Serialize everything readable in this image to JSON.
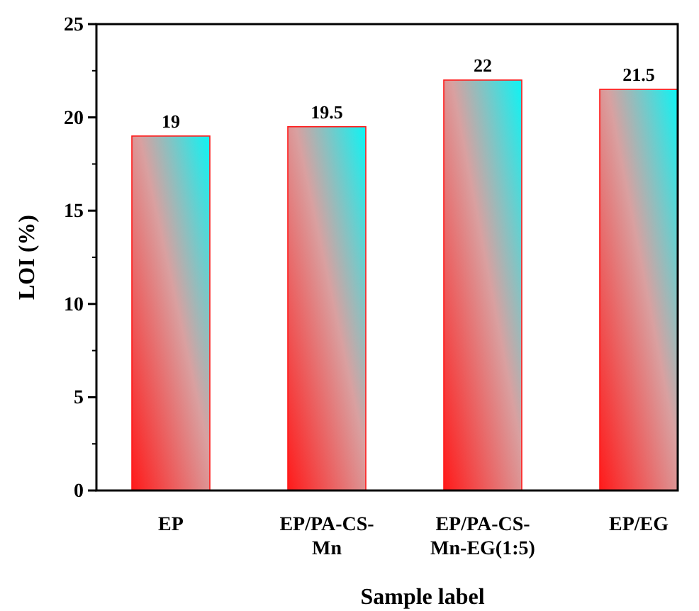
{
  "chart_data": {
    "type": "bar",
    "xlabel": "Sample label",
    "ylabel": "LOI (%)",
    "categories": [
      "EP",
      "EP/PA-CS-Mn",
      "EP/PA-CS-Mn-EG(1:5)",
      "EP/EG"
    ],
    "values": [
      19,
      19.5,
      22,
      21.5
    ],
    "value_labels": [
      "19",
      "19.5",
      "22",
      "21.5"
    ],
    "color": "#ff1a1a",
    "ylim": [
      0,
      25
    ],
    "yticks": [
      0,
      5,
      10,
      15,
      20,
      25
    ],
    "grid": false
  }
}
